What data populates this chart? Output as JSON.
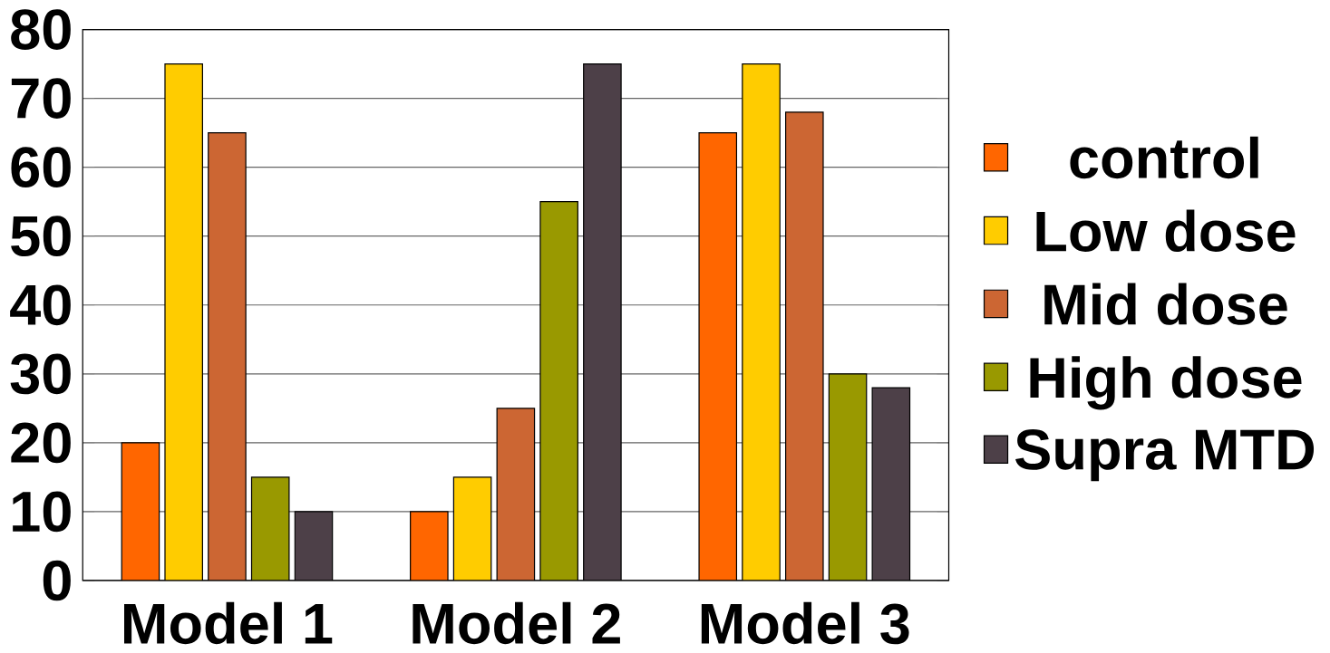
{
  "chart_data": {
    "type": "bar",
    "categories": [
      "Model 1",
      "Model 2",
      "Model 3"
    ],
    "series": [
      {
        "name": "control",
        "color": "#ff6600",
        "values": [
          20,
          10,
          65
        ]
      },
      {
        "name": "Low dose",
        "color": "#ffcc00",
        "values": [
          75,
          15,
          75
        ]
      },
      {
        "name": "Mid dose",
        "color": "#cc6633",
        "values": [
          65,
          25,
          68
        ]
      },
      {
        "name": "High dose",
        "color": "#999900",
        "values": [
          15,
          55,
          30
        ]
      },
      {
        "name": "Supra MTD",
        "color": "#4d4048",
        "values": [
          10,
          75,
          28
        ]
      }
    ],
    "ylim": [
      0,
      80
    ],
    "yticks": [
      0,
      10,
      20,
      30,
      40,
      50,
      60,
      70,
      80
    ],
    "grid": "y",
    "legend": "right"
  }
}
